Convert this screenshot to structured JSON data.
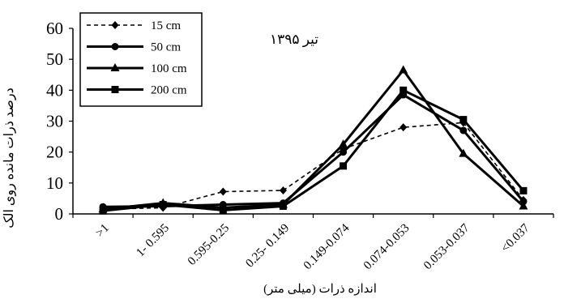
{
  "chart_data": {
    "type": "line",
    "title": "تیر ۱۳۹۵",
    "xlabel": "اندازه ذرات (میلی متر)",
    "ylabel": "درصد ذرات مانده روی الک",
    "ylim": [
      0,
      60
    ],
    "yticks": [
      "0",
      "10",
      "20",
      "30",
      "40",
      "50",
      "60"
    ],
    "categories": [
      ">1",
      "1- 0.595",
      "0.595-0.25",
      "0.25- 0.149",
      "0.149-0.074",
      "0.074-0.053",
      "0.053-0.037",
      "<0.037"
    ],
    "legend_position": "top-left",
    "series": [
      {
        "name": "15 cm",
        "marker": "diamond",
        "dashed": true,
        "values": [
          1.5,
          2.0,
          7.2,
          7.6,
          21.0,
          28.0,
          29.5,
          4.5
        ]
      },
      {
        "name": "50 cm",
        "marker": "circle",
        "dashed": false,
        "values": [
          2.3,
          2.5,
          3.0,
          3.5,
          20.0,
          38.5,
          27.0,
          4.0
        ]
      },
      {
        "name": "100 cm",
        "marker": "triangle",
        "dashed": false,
        "values": [
          1.5,
          3.5,
          2.0,
          3.0,
          22.5,
          46.5,
          19.5,
          2.5
        ]
      },
      {
        "name": "200 cm",
        "marker": "square",
        "dashed": false,
        "values": [
          1.0,
          3.0,
          1.2,
          2.5,
          15.5,
          40.0,
          30.5,
          7.5
        ]
      }
    ]
  }
}
